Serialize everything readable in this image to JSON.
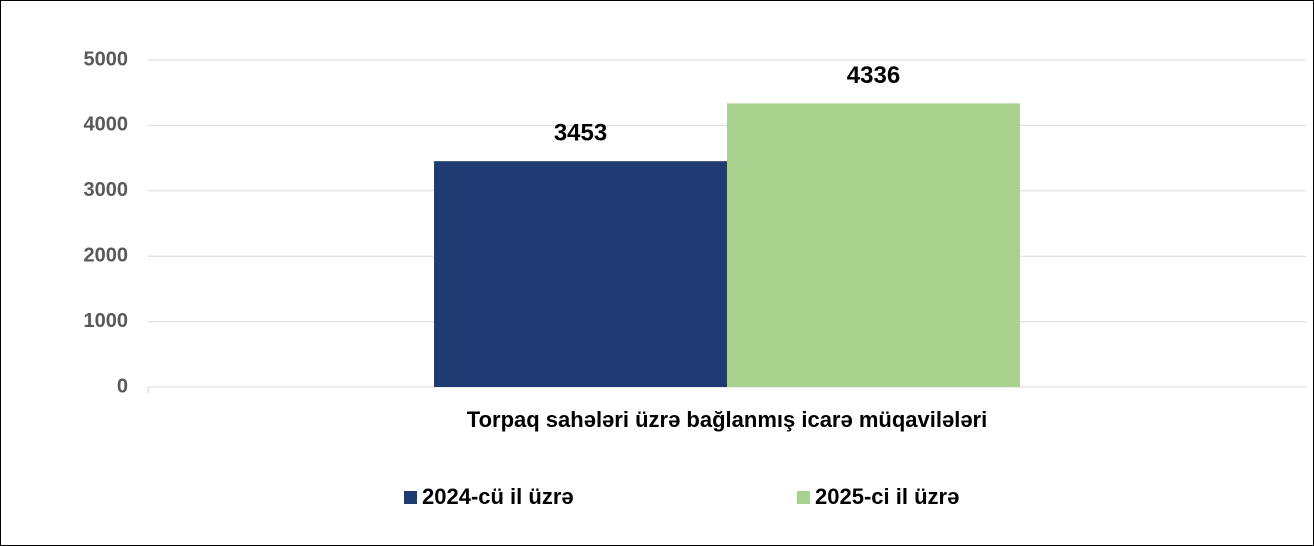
{
  "chart_data": {
    "type": "bar",
    "categories": [
      "Torpaq sahələri üzrə bağlanmış icarə müqavilələri"
    ],
    "series": [
      {
        "name": "2024-cü il üzrə",
        "color": "#203a72",
        "values": [
          3453
        ]
      },
      {
        "name": "2025-ci il üzrə",
        "color": "#a9d18e",
        "values": [
          4336
        ]
      }
    ],
    "ylim": [
      0,
      5000
    ],
    "yticks": [
      0,
      1000,
      2000,
      3000,
      4000,
      5000
    ],
    "grid": true,
    "legend": "bottom"
  }
}
